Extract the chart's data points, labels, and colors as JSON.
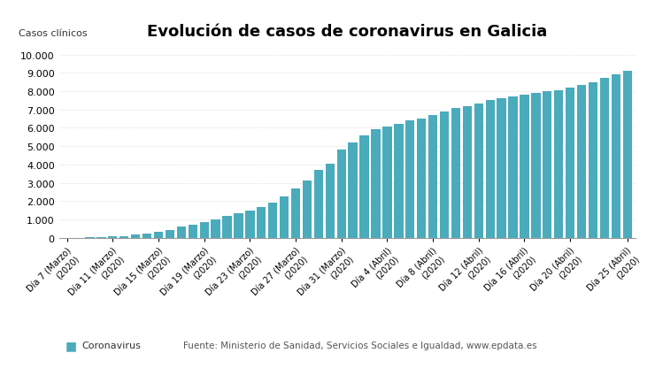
{
  "title": "Evolución de casos de coronavirus en Galicia",
  "ylabel_text": "Casos clínicos",
  "bar_color": "#4AABBC",
  "background_color": "#ffffff",
  "legend_label": "Coronavirus",
  "source_text": "Fuente: Ministerio de Sanidad, Servicios Sociales e Igualdad, www.epdata.es",
  "ylim": [
    0,
    10500
  ],
  "yticks": [
    0,
    1000,
    2000,
    3000,
    4000,
    5000,
    6000,
    7000,
    8000,
    9000,
    10000
  ],
  "values": [
    3,
    8,
    15,
    22,
    58,
    100,
    178,
    250,
    320,
    430,
    590,
    720,
    850,
    1000,
    1170,
    1340,
    1500,
    1670,
    1900,
    2250,
    2700,
    3100,
    3700,
    4050,
    4800,
    5200,
    5600,
    5900,
    6050,
    6200,
    6400,
    6500,
    6700,
    6900,
    7100,
    7200,
    7300,
    7500,
    7600,
    7700,
    7800,
    7900,
    8000,
    8050,
    8200,
    8350,
    8500,
    8700,
    8900,
    9100
  ],
  "xtick_positions": [
    0,
    4,
    8,
    12,
    16,
    20,
    24,
    28,
    32,
    36,
    40,
    44,
    49
  ],
  "xtick_labels": [
    "Día 7 (Marzo)\n(2020)",
    "Día 11 (Marzo)\n(2020)",
    "Día 15 (Marzo)\n(2020)",
    "Día 19 (Marzo)\n(2020)",
    "Día 23 (Marzo)\n(2020)",
    "Día 27 (Marzo)\n(2020)",
    "Día 31 (Marzo)\n(2020)",
    "Día 4 (Abril)\n(2020)",
    "Día 8 (Abril)\n(2020)",
    "Día 12 (Abril)\n(2020)",
    "Día 16 (Abril)\n(2020)",
    "Día 20 (Abril)\n(2020)",
    "Día 25 (Abril)\n(2020)"
  ]
}
